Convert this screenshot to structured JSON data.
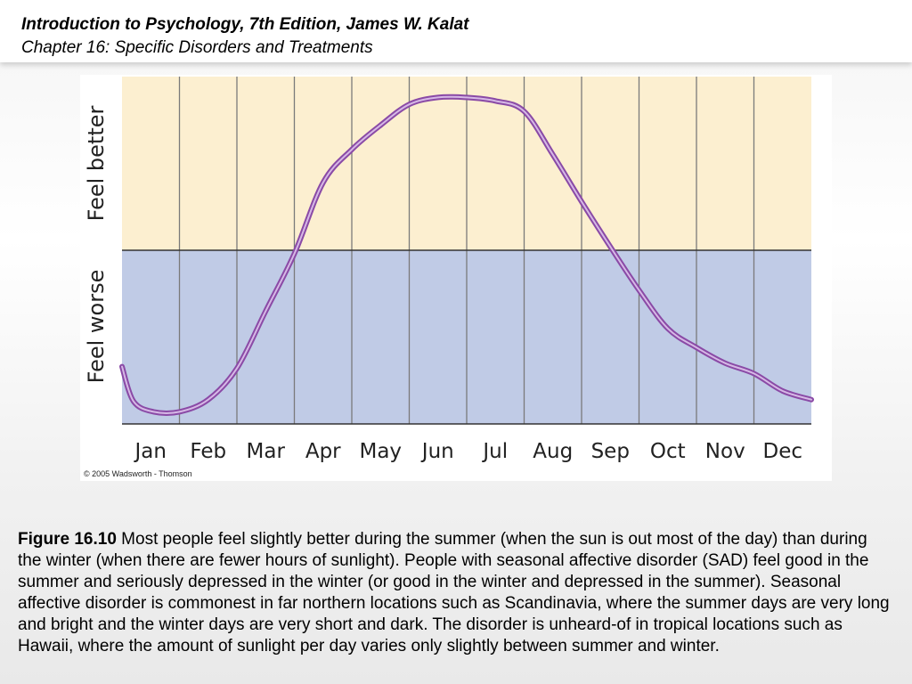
{
  "header": {
    "title": "Introduction to Psychology, 7th Edition, James W. Kalat",
    "subtitle": "Chapter 16: Specific Disorders and Treatments"
  },
  "figure": {
    "copyright": "© 2005 Wadsworth - Thomson"
  },
  "chart_data": {
    "type": "line",
    "title": "",
    "xlabel": "",
    "ylabel_top": "Feel better",
    "ylabel_bottom": "Feel worse",
    "categories": [
      "Jan",
      "Feb",
      "Mar",
      "Apr",
      "May",
      "Jun",
      "Jul",
      "Aug",
      "Sep",
      "Oct",
      "Nov",
      "Dec"
    ],
    "series": [
      {
        "x": [
          0.0,
          0.2,
          0.55,
          1.0,
          1.5,
          2.0,
          2.5,
          3.0,
          3.5,
          4.0,
          4.5,
          5.0,
          5.5,
          6.0,
          6.5,
          7.0,
          7.5,
          8.0,
          8.5,
          9.0,
          9.5,
          10.0,
          10.5,
          11.0,
          11.5,
          12.0
        ],
        "values": [
          -0.67,
          -0.87,
          -0.93,
          -0.93,
          -0.86,
          -0.68,
          -0.35,
          -0.02,
          0.39,
          0.58,
          0.72,
          0.84,
          0.88,
          0.88,
          0.86,
          0.8,
          0.55,
          0.28,
          0.02,
          -0.23,
          -0.45,
          -0.56,
          -0.65,
          -0.71,
          -0.81,
          -0.86
        ]
      }
    ],
    "ylim": [
      -1,
      1
    ],
    "reference_line": 0,
    "colors": {
      "better_band": "#fcefd0",
      "worse_band": "#c0cbe6",
      "line": "#8a4aa6",
      "line_highlight": "#d6b8e6",
      "grid": "#7a7a7a"
    }
  },
  "caption": {
    "figure_number": "Figure 16.10",
    "text": " Most people feel slightly better during the summer (when the sun is out most of the day) than during the winter (when there are fewer hours of sunlight). People with seasonal affective disorder (SAD) feel good in the summer and seriously depressed in the winter (or good in the winter and depressed in the summer). Seasonal affective disorder is commonest in far northern locations such as Scandinavia, where the summer days are very long and bright and the winter days are very short and dark. The disorder is unheard-of in tropical locations such as Hawaii, where the amount of sunlight per day varies only slightly between summer and winter."
  }
}
